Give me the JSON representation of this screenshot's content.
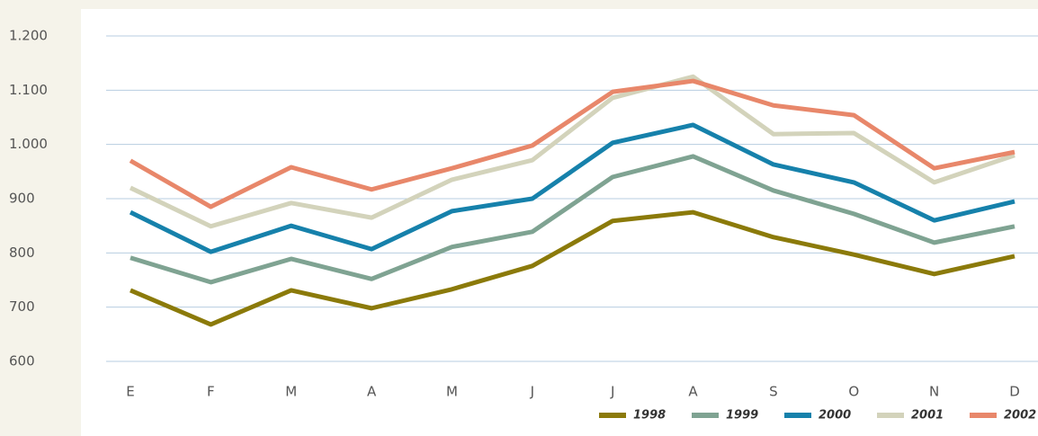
{
  "chart_data": {
    "type": "line",
    "categories": [
      "E",
      "F",
      "M",
      "A",
      "M",
      "J",
      "J",
      "A",
      "S",
      "O",
      "N",
      "D"
    ],
    "ylim": [
      600,
      1200
    ],
    "yticks": [
      600,
      700,
      800,
      900,
      {
        "value": 1000,
        "label": "1.000"
      },
      {
        "value": 1100,
        "label": "1.100"
      },
      {
        "value": 1200,
        "label": "1.200"
      }
    ],
    "grid": true,
    "legend": "bottom-right",
    "series": [
      {
        "name": "1998",
        "color": "#8b7a0a",
        "values": [
          731,
          668,
          731,
          698,
          733,
          776,
          859,
          875,
          829,
          797,
          761,
          794
        ]
      },
      {
        "name": "1999",
        "color": "#7fa392",
        "values": [
          791,
          746,
          789,
          752,
          811,
          839,
          940,
          978,
          915,
          872,
          819,
          849
        ]
      },
      {
        "name": "2000",
        "color": "#1681ab",
        "values": [
          875,
          802,
          850,
          807,
          877,
          900,
          1003,
          1036,
          963,
          930,
          860,
          895
        ]
      },
      {
        "name": "2001",
        "color": "#d3d3bb",
        "values": [
          920,
          849,
          892,
          865,
          935,
          971,
          1086,
          1125,
          1019,
          1021,
          930,
          980
        ]
      },
      {
        "name": "2002",
        "color": "#e8876a",
        "values": [
          970,
          885,
          958,
          917,
          956,
          998,
          1097,
          1117,
          1072,
          1054,
          956,
          986
        ]
      }
    ]
  }
}
